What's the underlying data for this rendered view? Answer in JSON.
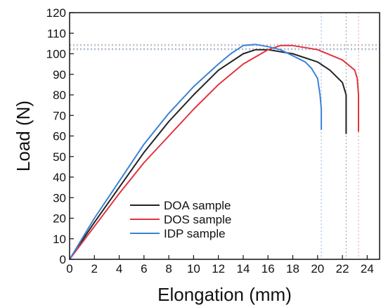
{
  "chart_data": {
    "type": "line",
    "xlabel": "Elongation (mm)",
    "ylabel": "Load (N)",
    "xlim": [
      0,
      25
    ],
    "ylim": [
      0,
      120
    ],
    "xticks": [
      0,
      2,
      4,
      6,
      8,
      10,
      12,
      14,
      16,
      18,
      20,
      22,
      24
    ],
    "yticks": [
      0,
      10,
      20,
      30,
      40,
      50,
      60,
      70,
      80,
      90,
      100,
      110,
      120
    ],
    "grid": false,
    "legend_position": "bottom-center",
    "reference_lines": {
      "vertical_x": [
        20.3,
        22.3,
        23.3
      ],
      "horizontal_y": [
        102.5,
        104.5
      ],
      "style": "dotted"
    },
    "series": [
      {
        "name": "DOA sample",
        "color": "#222222",
        "x": [
          0,
          1,
          2,
          4,
          6,
          8,
          10,
          12,
          14,
          15,
          16,
          18,
          20,
          21,
          22,
          22.3,
          22.3
        ],
        "y": [
          0,
          9,
          18,
          35,
          52,
          67,
          80,
          92,
          100,
          102,
          102,
          100,
          96,
          92,
          86,
          80,
          61
        ]
      },
      {
        "name": "DOS sample",
        "color": "#e0343f",
        "x": [
          0,
          1,
          2,
          4,
          6,
          8,
          10,
          12,
          14,
          16,
          17,
          18,
          20,
          22,
          23,
          23.2,
          23.3,
          23.3
        ],
        "y": [
          0,
          8,
          16,
          32,
          47,
          60,
          73,
          85,
          95,
          102,
          104,
          104,
          102,
          97,
          92,
          88,
          80,
          62
        ]
      },
      {
        "name": "IDP sample",
        "color": "#3b82d6",
        "x": [
          0,
          1,
          2,
          4,
          6,
          8,
          10,
          12,
          13,
          14,
          15,
          16,
          17,
          18,
          19,
          19.5,
          20,
          20.2,
          20.3,
          20.3
        ],
        "y": [
          0,
          10,
          20,
          38,
          56,
          71,
          84,
          95,
          100,
          104,
          104.5,
          103.5,
          102,
          99,
          96,
          93,
          88,
          80,
          73,
          63
        ]
      }
    ]
  }
}
